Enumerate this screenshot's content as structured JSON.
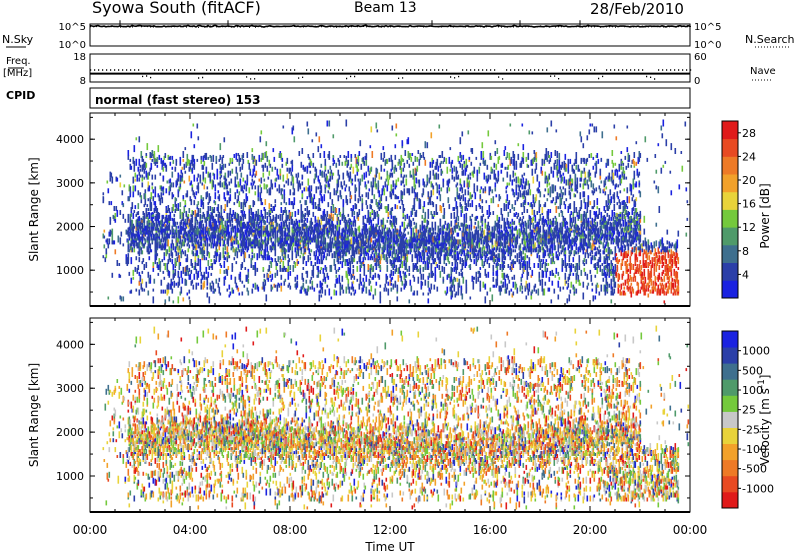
{
  "header": {
    "station": "Syowa South (fitACF)",
    "beam": "Beam 13",
    "date": "28/Feb/2010"
  },
  "left_labels": {
    "nsky": "N.Sky",
    "freq": "Freq.",
    "freq_unit": "[MHz]",
    "cpid": "CPID"
  },
  "right_labels": {
    "nsearch": "N.Search",
    "nave": "Nave"
  },
  "cpid_text": "normal (fast stereo) 153",
  "colors": {
    "power_scale": [
      "#1a22e0",
      "#2b3fa8",
      "#3e6f8e",
      "#4f9a6a",
      "#74c93c",
      "#e8d33a",
      "#f2a12a",
      "#ee7a26",
      "#e84a22",
      "#e01a1a"
    ],
    "velocity_scale": [
      "#1a22e0",
      "#2b3fa8",
      "#3e6f8e",
      "#4f9a6a",
      "#74c93c",
      "#c8c8c8",
      "#e8d33a",
      "#f2a12a",
      "#ee7a26",
      "#e84a22",
      "#e01a1a"
    ]
  },
  "chart_data": [
    {
      "type": "line",
      "panel": "noise",
      "ylabel": "N.Sky",
      "y2label": "N.Search",
      "ytick_labels": [
        "10^5",
        "10^0"
      ],
      "y2tick_labels": [
        "10^5",
        "10^0"
      ],
      "xlim": [
        0,
        24
      ],
      "series": [
        {
          "name": "N.Sky",
          "style": "solid",
          "level": 0.9
        },
        {
          "name": "N.Search",
          "style": "dotted",
          "level": 0.88
        }
      ]
    },
    {
      "type": "line",
      "panel": "frequency",
      "ylabel": "Freq. [MHz]",
      "y2label": "Nave",
      "ytick_labels": [
        "18",
        "8"
      ],
      "y2tick_labels": [
        "60",
        "0"
      ],
      "ylim": [
        8,
        18
      ],
      "y2lim": [
        0,
        60
      ],
      "xlim": [
        0,
        24
      ],
      "series": [
        {
          "name": "Freq.",
          "style": "solid",
          "value": 11
        },
        {
          "name": "Nave",
          "style": "dotted",
          "value": 30
        }
      ]
    },
    {
      "type": "heatmap",
      "panel": "power",
      "ylabel": "Slant Range [km]",
      "ytick_labels": [
        "1000",
        "2000",
        "3000",
        "4000"
      ],
      "ylim": [
        180,
        4600
      ],
      "xlim": [
        0,
        24
      ],
      "colorbar_label": "Power [dB]",
      "colorbar_tick_labels": [
        "4",
        "8",
        "12",
        "16",
        "20",
        "24",
        "28"
      ],
      "colorbar_range": [
        0,
        30
      ]
    },
    {
      "type": "heatmap",
      "panel": "velocity",
      "ylabel": "Slant Range [km]",
      "ytick_labels": [
        "1000",
        "2000",
        "3000",
        "4000"
      ],
      "ylim": [
        180,
        4600
      ],
      "xlim": [
        0,
        24
      ],
      "colorbar_label": "Velocity [m s",
      "colorbar_label_sup": "-1",
      "colorbar_label_end": "]",
      "colorbar_tick_labels": [
        "1000",
        "500",
        "100",
        "25",
        "-25",
        "-100",
        "-500",
        "-1000"
      ]
    },
    {
      "type": "axis",
      "xlabel": "Time UT",
      "xtick_labels": [
        "00:00",
        "04:00",
        "08:00",
        "12:00",
        "16:00",
        "20:00",
        "00:00"
      ],
      "xticks": [
        0,
        4,
        8,
        12,
        16,
        20,
        24
      ]
    }
  ]
}
